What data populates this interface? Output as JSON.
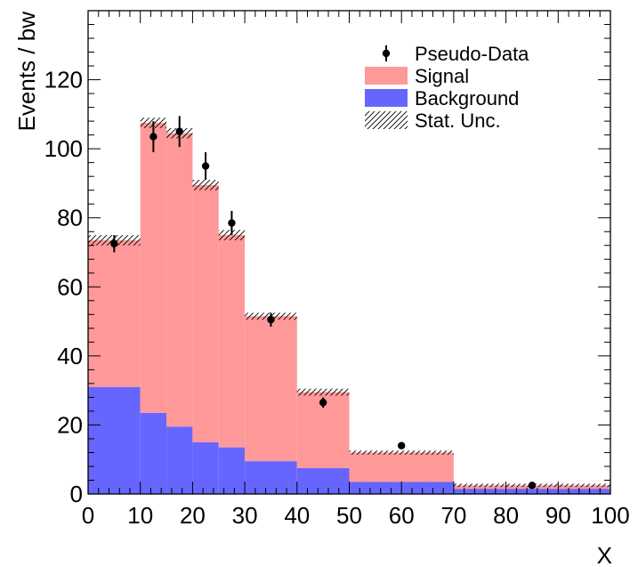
{
  "chart_data": {
    "type": "bar",
    "title": "",
    "xlabel": "X",
    "ylabel": "Events / bw",
    "xlim": [
      0,
      100
    ],
    "ylim": [
      0,
      140
    ],
    "x_ticks": [
      0,
      10,
      20,
      30,
      40,
      50,
      60,
      70,
      80,
      90,
      100
    ],
    "y_ticks": [
      0,
      20,
      40,
      60,
      80,
      100,
      120
    ],
    "bin_edges": [
      0,
      10,
      15,
      20,
      25,
      30,
      40,
      50,
      70,
      100
    ],
    "series": [
      {
        "name": "Background",
        "type": "stacked-histogram",
        "values": [
          31,
          23.5,
          19.5,
          15,
          13.5,
          9.5,
          7.5,
          3.5,
          1.5
        ]
      },
      {
        "name": "Signal",
        "type": "stacked-histogram",
        "values": [
          42.5,
          84,
          85,
          74.5,
          61.5,
          42,
          22,
          8.5,
          1
        ]
      },
      {
        "name": "Stat. Unc.",
        "type": "uncertainty-band",
        "values": [
          1.5,
          1.5,
          1.5,
          1.5,
          1.5,
          1,
          1,
          0.6,
          0.5
        ]
      },
      {
        "name": "Pseudo-Data",
        "type": "points",
        "x": [
          5,
          12.5,
          17.5,
          22.5,
          27.5,
          35,
          45,
          60,
          85
        ],
        "y": [
          72.5,
          103.5,
          105,
          95,
          78.5,
          50.5,
          26.5,
          14,
          2.5
        ],
        "yerr": [
          2.5,
          4.5,
          4.5,
          4,
          3.5,
          2,
          1.5,
          0.5,
          0.3
        ]
      }
    ],
    "legend": {
      "placement": "top-right",
      "entries": [
        {
          "label": "Pseudo-Data",
          "style": "marker"
        },
        {
          "label": "Signal",
          "style": "fill"
        },
        {
          "label": "Background",
          "style": "fill"
        },
        {
          "label": "Stat. Unc.",
          "style": "hatch"
        }
      ]
    },
    "colors": {
      "signal": "#ff9999",
      "background": "#6666ff",
      "data": "#000000",
      "hatch": "#000000"
    },
    "grid": false
  }
}
